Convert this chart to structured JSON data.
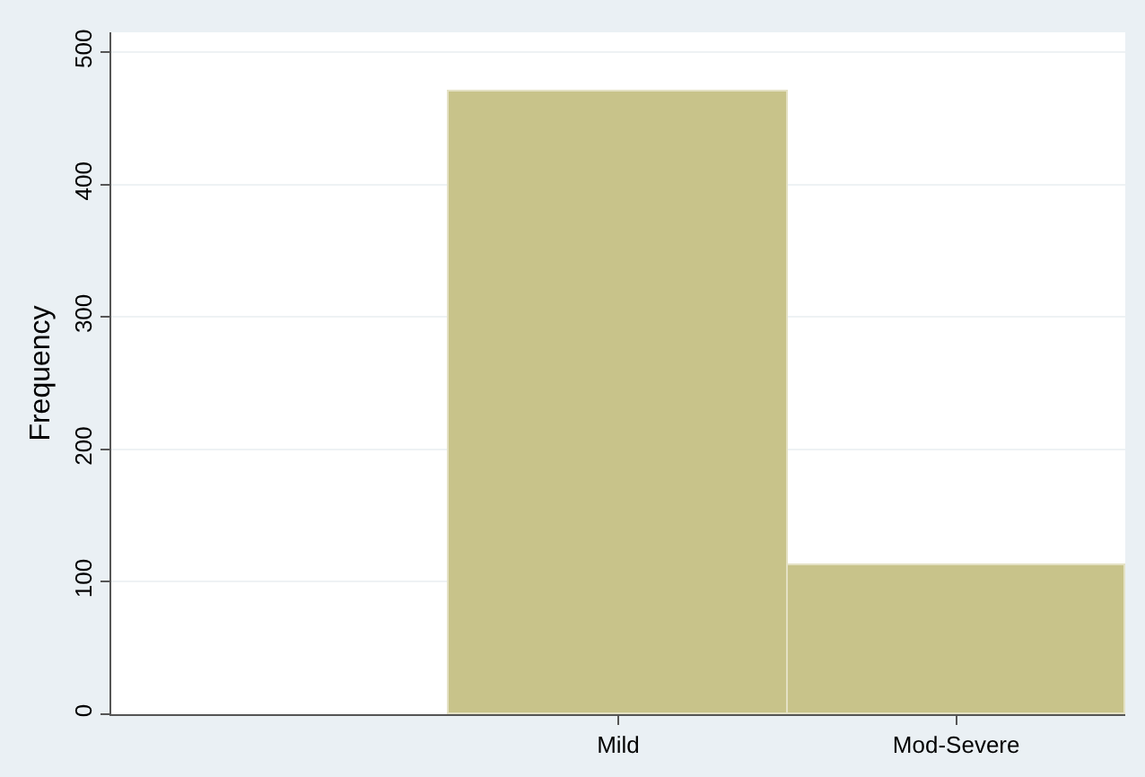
{
  "chart_data": {
    "type": "bar",
    "ylabel": "Frequency",
    "categories": [
      null,
      "Mild",
      "Mod-Severe"
    ],
    "values": [
      null,
      470,
      112
    ],
    "color": "#c8c38a",
    "ylim": [
      0,
      515
    ],
    "yticks": [
      0,
      100,
      200,
      300,
      400,
      500
    ],
    "grid": "y",
    "legend": false
  }
}
